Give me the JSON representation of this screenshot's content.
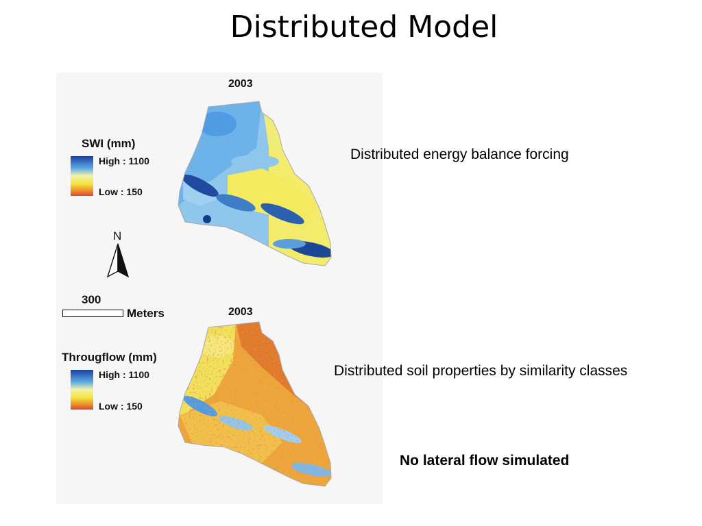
{
  "slide": {
    "title": "Distributed Model"
  },
  "figure": {
    "map_top": {
      "year": "2003",
      "legend_title": "SWI (mm)",
      "legend_high": "High : 1100",
      "legend_low": "Low : 150"
    },
    "map_bottom": {
      "year": "2003",
      "legend_title": "Througflow (mm)",
      "legend_high": "High : 1100",
      "legend_low": "Low : 150"
    },
    "north_arrow": {
      "label": "N",
      "icon": "north-arrow-icon"
    },
    "scale_bar": {
      "value": "300",
      "unit": "Meters"
    },
    "colors": {
      "high": "#1a3f9a",
      "mid_blue": "#5aa8e6",
      "light": "#f2f3a6",
      "yellow": "#f3e43f",
      "orange": "#ec8a2b",
      "low": "#d9462a"
    }
  },
  "notes": {
    "energy": "Distributed energy balance forcing",
    "soil": "Distributed soil properties by similarity classes",
    "lateral": "No lateral flow simulated"
  }
}
